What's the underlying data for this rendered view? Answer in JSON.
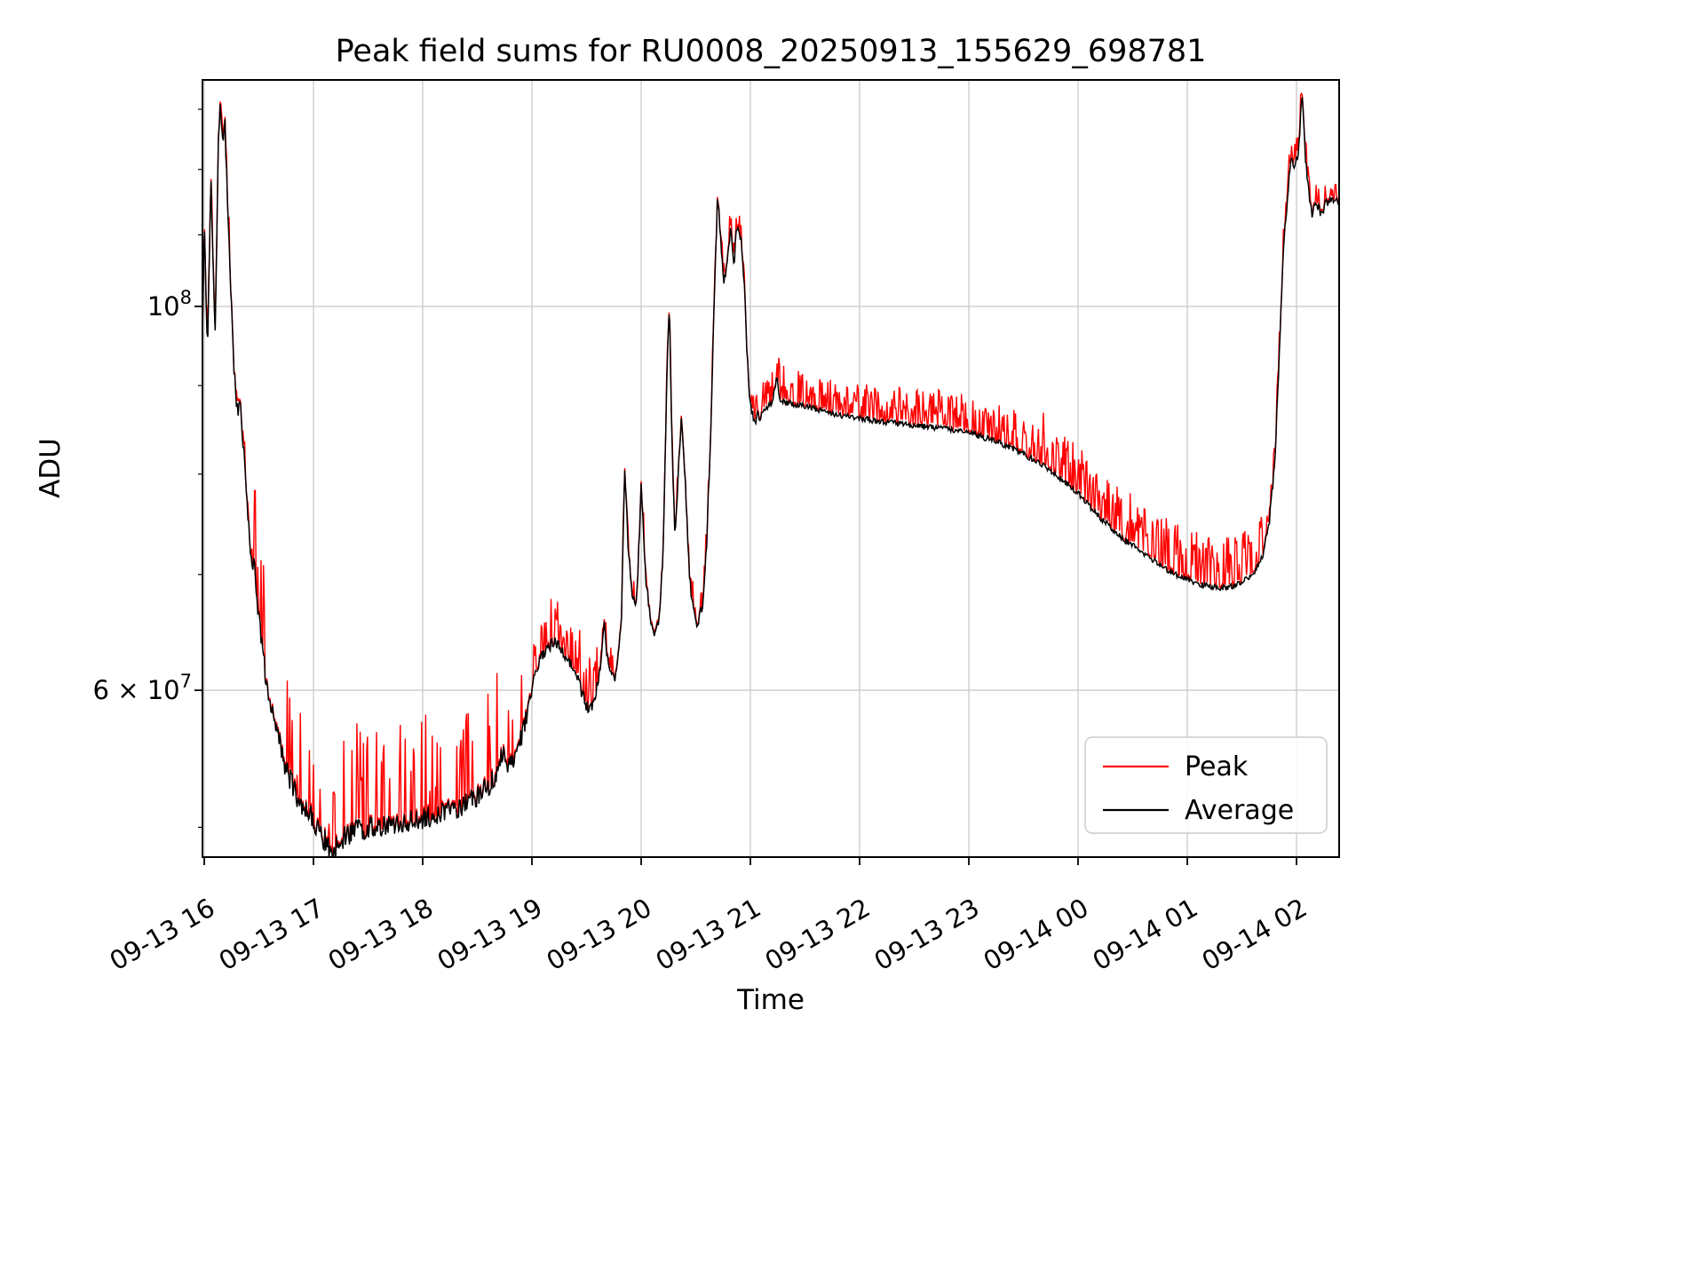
{
  "chart_data": {
    "type": "line",
    "title": "Peak field sums for RU0008_20250913_155629_698781",
    "xlabel": "Time",
    "ylabel": "ADU",
    "yscale": "log",
    "ylim": [
      48000000,
      135000000
    ],
    "grid": true,
    "x_tick_labels": [
      "09-13 16",
      "09-13 17",
      "09-13 18",
      "09-13 19",
      "09-13 20",
      "09-13 21",
      "09-13 22",
      "09-13 23",
      "09-14 00",
      "09-14 01",
      "09-14 02"
    ],
    "x_tick_hours": [
      0,
      1,
      2,
      3,
      4,
      5,
      6,
      7,
      8,
      9,
      10
    ],
    "y_ticks": [
      {
        "value": 100000000,
        "base": "10",
        "exp": "8"
      },
      {
        "value": 60000000,
        "base": "6 × 10",
        "exp": "7"
      }
    ],
    "y_minor_ticks": [
      50000000,
      70000000,
      80000000,
      90000000,
      110000000,
      120000000,
      130000000
    ],
    "series": [
      {
        "name": "Peak",
        "color": "#ff0000"
      },
      {
        "name": "Average",
        "color": "#000000"
      }
    ],
    "legend": {
      "location": "lower right",
      "entries": [
        "Peak",
        "Average"
      ]
    },
    "value_scale": 10000000,
    "t_range": [
      -0.02,
      10.39
    ],
    "sample_step_hours": 0.0075,
    "avg_keypoints": [
      [
        -0.02,
        9.2
      ],
      [
        0.0,
        11.2
      ],
      [
        0.03,
        9.4
      ],
      [
        0.06,
        11.9
      ],
      [
        0.1,
        9.7
      ],
      [
        0.13,
        12.5
      ],
      [
        0.15,
        13.1
      ],
      [
        0.17,
        12.5
      ],
      [
        0.19,
        12.8
      ],
      [
        0.21,
        11.6
      ],
      [
        0.24,
        10.3
      ],
      [
        0.27,
        9.3
      ],
      [
        0.3,
        8.72
      ],
      [
        0.33,
        8.78
      ],
      [
        0.36,
        8.3
      ],
      [
        0.4,
        7.6
      ],
      [
        0.43,
        7.1
      ],
      [
        0.46,
        7.12
      ],
      [
        0.5,
        6.6
      ],
      [
        0.55,
        6.2
      ],
      [
        0.6,
        5.95
      ],
      [
        0.65,
        5.75
      ],
      [
        0.7,
        5.55
      ],
      [
        0.75,
        5.4
      ],
      [
        0.8,
        5.3
      ],
      [
        0.85,
        5.2
      ],
      [
        0.9,
        5.15
      ],
      [
        0.95,
        5.1
      ],
      [
        1.0,
        5.05
      ],
      [
        1.05,
        4.98
      ],
      [
        1.1,
        4.92
      ],
      [
        1.15,
        4.85
      ],
      [
        1.18,
        4.8
      ],
      [
        1.22,
        4.9
      ],
      [
        1.3,
        4.95
      ],
      [
        1.4,
        4.98
      ],
      [
        1.5,
        5.0
      ],
      [
        1.6,
        5.0
      ],
      [
        1.7,
        5.02
      ],
      [
        1.8,
        5.03
      ],
      [
        1.9,
        5.05
      ],
      [
        2.0,
        5.06
      ],
      [
        2.1,
        5.08
      ],
      [
        2.2,
        5.1
      ],
      [
        2.3,
        5.13
      ],
      [
        2.4,
        5.16
      ],
      [
        2.5,
        5.2
      ],
      [
        2.55,
        5.24
      ],
      [
        2.6,
        5.28
      ],
      [
        2.65,
        5.33
      ],
      [
        2.7,
        5.45
      ],
      [
        2.74,
        5.5
      ],
      [
        2.78,
        5.43
      ],
      [
        2.85,
        5.52
      ],
      [
        2.9,
        5.62
      ],
      [
        2.95,
        5.78
      ],
      [
        3.0,
        6.02
      ],
      [
        3.05,
        6.2
      ],
      [
        3.1,
        6.3
      ],
      [
        3.15,
        6.35
      ],
      [
        3.2,
        6.4
      ],
      [
        3.25,
        6.38
      ],
      [
        3.3,
        6.3
      ],
      [
        3.35,
        6.22
      ],
      [
        3.4,
        6.15
      ],
      [
        3.45,
        6.0
      ],
      [
        3.5,
        5.88
      ],
      [
        3.55,
        5.85
      ],
      [
        3.58,
        5.95
      ],
      [
        3.61,
        6.1
      ],
      [
        3.64,
        6.3
      ],
      [
        3.66,
        6.55
      ],
      [
        3.68,
        6.35
      ],
      [
        3.72,
        6.15
      ],
      [
        3.76,
        6.1
      ],
      [
        3.8,
        6.35
      ],
      [
        3.82,
        6.6
      ],
      [
        3.85,
        8.1
      ],
      [
        3.88,
        7.3
      ],
      [
        3.92,
        6.8
      ],
      [
        3.96,
        6.75
      ],
      [
        4.0,
        7.85
      ],
      [
        4.04,
        7.0
      ],
      [
        4.08,
        6.6
      ],
      [
        4.12,
        6.5
      ],
      [
        4.16,
        6.55
      ],
      [
        4.2,
        7.2
      ],
      [
        4.24,
        9.3
      ],
      [
        4.26,
        10.05
      ],
      [
        4.28,
        8.4
      ],
      [
        4.31,
        7.4
      ],
      [
        4.34,
        8.0
      ],
      [
        4.37,
        8.65
      ],
      [
        4.4,
        8.0
      ],
      [
        4.44,
        7.0
      ],
      [
        4.48,
        6.65
      ],
      [
        4.52,
        6.55
      ],
      [
        4.56,
        6.7
      ],
      [
        4.6,
        7.3
      ],
      [
        4.64,
        8.6
      ],
      [
        4.67,
        10.2
      ],
      [
        4.7,
        11.6
      ],
      [
        4.73,
        10.9
      ],
      [
        4.76,
        10.3
      ],
      [
        4.79,
        10.7
      ],
      [
        4.82,
        11.1
      ],
      [
        4.85,
        10.6
      ],
      [
        4.88,
        11.2
      ],
      [
        4.91,
        11.0
      ],
      [
        4.94,
        10.4
      ],
      [
        4.97,
        9.4
      ],
      [
        5.0,
        8.75
      ],
      [
        5.04,
        8.6
      ],
      [
        5.08,
        8.65
      ],
      [
        5.12,
        8.7
      ],
      [
        5.16,
        8.75
      ],
      [
        5.2,
        8.8
      ],
      [
        5.24,
        9.1
      ],
      [
        5.27,
        8.85
      ],
      [
        5.32,
        8.8
      ],
      [
        5.4,
        8.78
      ],
      [
        5.5,
        8.75
      ],
      [
        5.6,
        8.72
      ],
      [
        5.8,
        8.66
      ],
      [
        6.0,
        8.62
      ],
      [
        6.2,
        8.58
      ],
      [
        6.4,
        8.55
      ],
      [
        6.6,
        8.52
      ],
      [
        6.8,
        8.5
      ],
      [
        7.0,
        8.45
      ],
      [
        7.2,
        8.38
      ],
      [
        7.4,
        8.28
      ],
      [
        7.6,
        8.15
      ],
      [
        7.8,
        8.0
      ],
      [
        8.0,
        7.8
      ],
      [
        8.2,
        7.55
      ],
      [
        8.4,
        7.35
      ],
      [
        8.6,
        7.2
      ],
      [
        8.8,
        7.05
      ],
      [
        9.0,
        6.95
      ],
      [
        9.15,
        6.9
      ],
      [
        9.3,
        6.87
      ],
      [
        9.45,
        6.9
      ],
      [
        9.6,
        7.0
      ],
      [
        9.7,
        7.2
      ],
      [
        9.75,
        7.5
      ],
      [
        9.8,
        8.1
      ],
      [
        9.84,
        9.3
      ],
      [
        9.88,
        10.8
      ],
      [
        9.92,
        11.6
      ],
      [
        9.95,
        12.2
      ],
      [
        9.98,
        12.0
      ],
      [
        10.02,
        12.3
      ],
      [
        10.05,
        13.3
      ],
      [
        10.08,
        12.2
      ],
      [
        10.11,
        11.7
      ],
      [
        10.14,
        11.3
      ],
      [
        10.17,
        11.5
      ],
      [
        10.2,
        11.4
      ],
      [
        10.23,
        11.3
      ],
      [
        10.26,
        11.45
      ],
      [
        10.3,
        11.5
      ],
      [
        10.35,
        11.55
      ],
      [
        10.39,
        11.5
      ]
    ],
    "jitter_regions": [
      {
        "t0": -0.02,
        "t1": 0.45,
        "amp": 0.012
      },
      {
        "t0": 0.45,
        "t1": 2.95,
        "amp": 0.015
      },
      {
        "t0": 2.95,
        "t1": 5.1,
        "amp": 0.008
      },
      {
        "t0": 5.1,
        "t1": 9.7,
        "amp": 0.004
      },
      {
        "t0": 9.7,
        "t1": 10.4,
        "amp": 0.006
      }
    ],
    "spike_regions": [
      {
        "t0": -0.02,
        "t1": 0.45,
        "prob": 0.25,
        "amp": 0.035
      },
      {
        "t0": 0.45,
        "t1": 2.95,
        "prob": 0.22,
        "amp": 0.14
      },
      {
        "t0": 2.95,
        "t1": 3.6,
        "prob": 0.3,
        "amp": 0.07
      },
      {
        "t0": 3.6,
        "t1": 5.1,
        "prob": 0.25,
        "amp": 0.035
      },
      {
        "t0": 5.1,
        "t1": 7.6,
        "prob": 0.5,
        "amp": 0.05
      },
      {
        "t0": 7.6,
        "t1": 9.7,
        "prob": 0.5,
        "amp": 0.07
      },
      {
        "t0": 9.7,
        "t1": 10.4,
        "prob": 0.3,
        "amp": 0.03
      }
    ]
  }
}
